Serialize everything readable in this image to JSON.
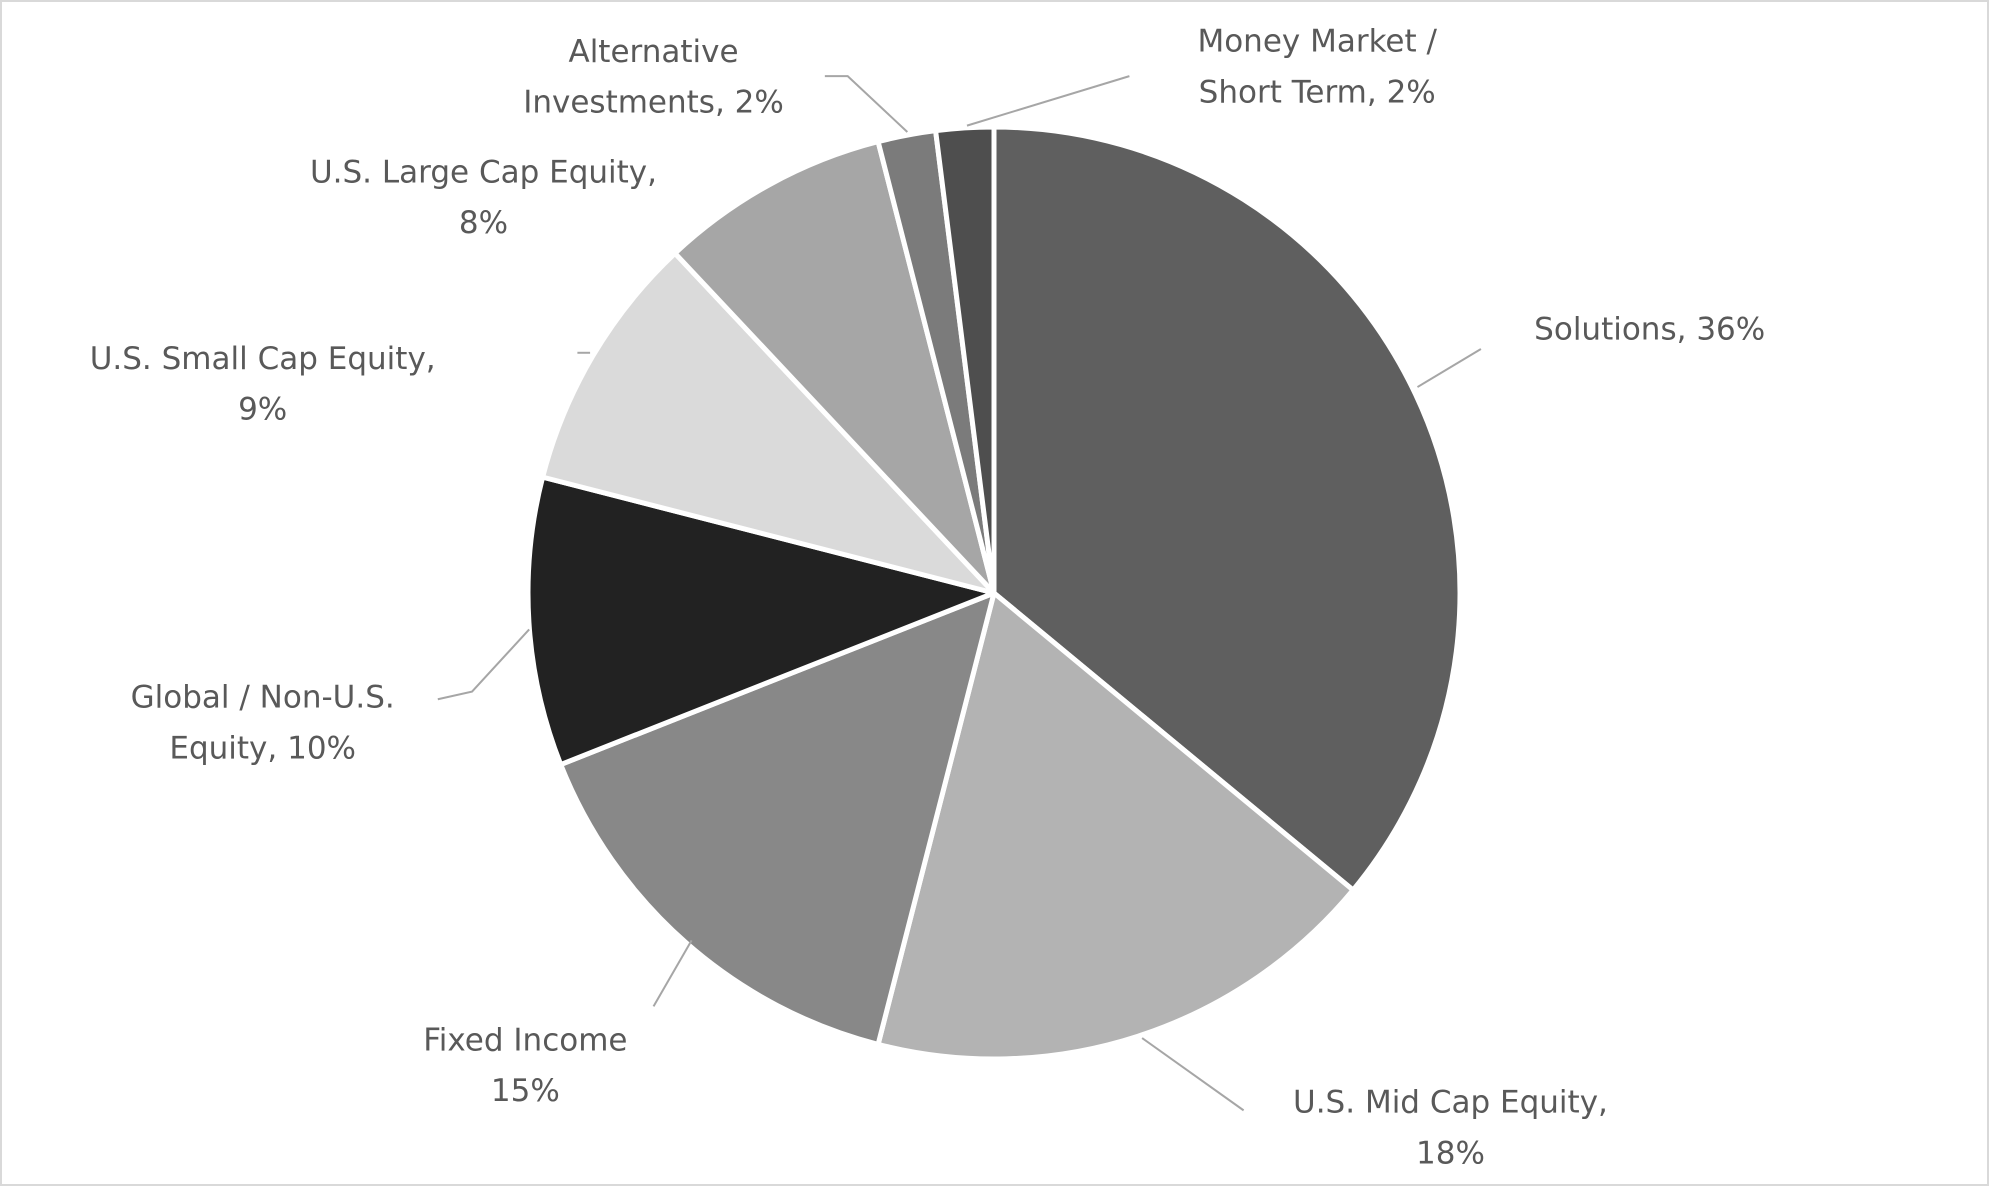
{
  "chart_data": {
    "type": "pie",
    "values": [
      36,
      18,
      15,
      10,
      9,
      8,
      2,
      2
    ],
    "value_labels": [
      [
        "Solutions, 36%"
      ],
      [
        "U.S. Mid Cap Equity,",
        "18%"
      ],
      [
        "Fixed Income",
        "15%"
      ],
      [
        "Global / Non-U.S.",
        "Equity, 10%"
      ],
      [
        "U.S. Small Cap Equity,",
        "9%"
      ],
      [
        "U.S. Large Cap Equity,",
        "8%"
      ],
      [
        "Alternative",
        "Investments, 2%"
      ],
      [
        "Money Market /",
        "Short Term, 2%"
      ]
    ],
    "colors": [
      "#5f5f5f",
      "#b3b3b3",
      "#888888",
      "#222222",
      "#dadada",
      "#a6a6a6",
      "#7b7b7b",
      "#4e4e4e"
    ]
  }
}
